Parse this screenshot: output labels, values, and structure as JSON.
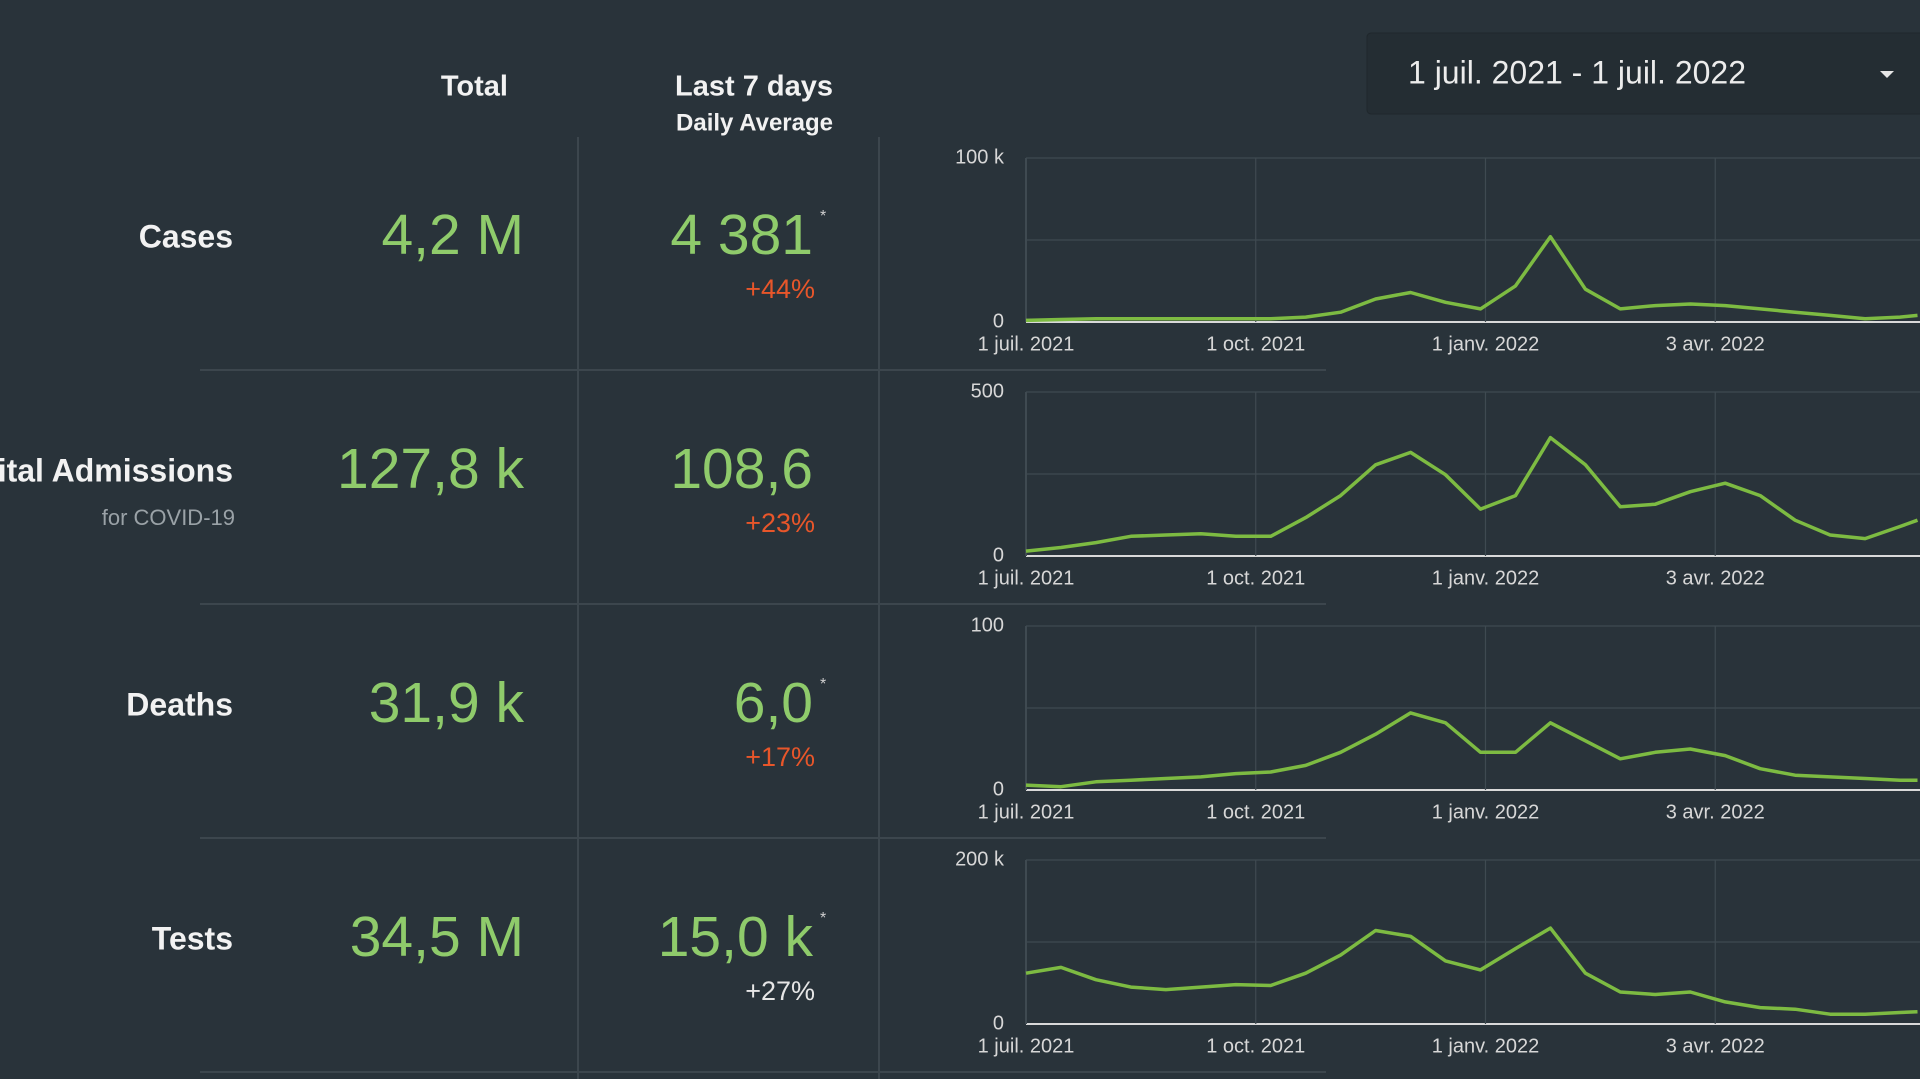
{
  "date_range": "1 juil. 2021 - 1 juil. 2022",
  "headers": {
    "total": "Total",
    "last7": "Last 7 days",
    "daily_avg": "Daily Average"
  },
  "rows": [
    {
      "label": "Cases",
      "total": "4,2 M",
      "avg": "4 381",
      "star": "*",
      "change": "+44%",
      "change_color": "#e8562a"
    },
    {
      "label": "Hospital Admissions",
      "note": "for COVID-19",
      "total": "127,8 k",
      "avg": "108,6",
      "change": "+23%",
      "change_color": "#e8562a"
    },
    {
      "label": "Deaths",
      "total": "31,9 k",
      "avg": "6,0",
      "star": "*",
      "change": "+17%",
      "change_color": "#e8562a"
    },
    {
      "label": "Tests",
      "total": "34,5 M",
      "avg": "15,0 k",
      "star": "*",
      "change": "+27%",
      "change_color": "#e6e6e6"
    }
  ],
  "chart_data": [
    {
      "type": "line",
      "color": "#7dbb42",
      "x": [
        "2021-07-01",
        "2021-07-15",
        "2021-07-29",
        "2021-08-12",
        "2021-08-26",
        "2021-09-09",
        "2021-09-23",
        "2021-10-07",
        "2021-10-21",
        "2021-11-04",
        "2021-11-18",
        "2021-12-02",
        "2021-12-16",
        "2021-12-30",
        "2022-01-13",
        "2022-01-27",
        "2022-02-10",
        "2022-02-24",
        "2022-03-10",
        "2022-03-24",
        "2022-04-07",
        "2022-04-21",
        "2022-05-05",
        "2022-05-19",
        "2022-06-02",
        "2022-06-16",
        "2022-06-23"
      ],
      "values": [
        1000,
        1500,
        2000,
        2000,
        2000,
        2000,
        2000,
        2000,
        3000,
        6000,
        14000,
        18000,
        12000,
        8000,
        22000,
        52000,
        20000,
        8000,
        10000,
        11000,
        10000,
        8000,
        6000,
        4000,
        2000,
        3000,
        4000
      ],
      "xlim": [
        "2021-07-01",
        "2022-06-24"
      ],
      "xticks": [
        {
          "value": "2021-07-01",
          "label": "1 juil. 2021"
        },
        {
          "value": "2021-10-01",
          "label": "1 oct. 2021"
        },
        {
          "value": "2022-01-01",
          "label": "1 janv. 2022"
        },
        {
          "value": "2022-04-03",
          "label": "3 avr. 2022"
        }
      ],
      "ylim": [
        0,
        100000
      ],
      "yticks": [
        0,
        {
          "value": 100000,
          "label": "100 k"
        }
      ],
      "ygrid": [
        0,
        50000,
        100000
      ]
    },
    {
      "type": "line",
      "color": "#7dbb42",
      "x": [
        "2021-07-01",
        "2021-07-15",
        "2021-07-29",
        "2021-08-12",
        "2021-08-26",
        "2021-09-09",
        "2021-09-23",
        "2021-10-07",
        "2021-10-21",
        "2021-11-04",
        "2021-11-18",
        "2021-12-02",
        "2021-12-16",
        "2021-12-30",
        "2022-01-13",
        "2022-01-27",
        "2022-02-10",
        "2022-02-24",
        "2022-03-10",
        "2022-03-24",
        "2022-04-07",
        "2022-04-21",
        "2022-05-05",
        "2022-05-19",
        "2022-06-02",
        "2022-06-16",
        "2022-06-23"
      ],
      "values": [
        15,
        26,
        41,
        60,
        64,
        68,
        60,
        60,
        117,
        184,
        278,
        316,
        248,
        143,
        184,
        361,
        278,
        150,
        158,
        196,
        222,
        184,
        109,
        64,
        53,
        90,
        109
      ],
      "xlim": [
        "2021-07-01",
        "2022-06-24"
      ],
      "xticks": [
        {
          "value": "2021-07-01",
          "label": "1 juil. 2021"
        },
        {
          "value": "2021-10-01",
          "label": "1 oct. 2021"
        },
        {
          "value": "2022-01-01",
          "label": "1 janv. 2022"
        },
        {
          "value": "2022-04-03",
          "label": "3 avr. 2022"
        }
      ],
      "ylim": [
        0,
        500
      ],
      "yticks": [
        0,
        500
      ],
      "ygrid": [
        0,
        250,
        500
      ]
    },
    {
      "type": "line",
      "color": "#7dbb42",
      "x": [
        "2021-07-01",
        "2021-07-15",
        "2021-07-29",
        "2021-08-12",
        "2021-08-26",
        "2021-09-09",
        "2021-09-23",
        "2021-10-07",
        "2021-10-21",
        "2021-11-04",
        "2021-11-18",
        "2021-12-02",
        "2021-12-16",
        "2021-12-30",
        "2022-01-13",
        "2022-01-27",
        "2022-02-10",
        "2022-02-24",
        "2022-03-10",
        "2022-03-24",
        "2022-04-07",
        "2022-04-21",
        "2022-05-05",
        "2022-05-19",
        "2022-06-02",
        "2022-06-16",
        "2022-06-23"
      ],
      "values": [
        3,
        2,
        5,
        6,
        7,
        8,
        10,
        11,
        15,
        23,
        34,
        47,
        41,
        23,
        23,
        41,
        30,
        19,
        23,
        25,
        21,
        13,
        9,
        8,
        7,
        6,
        6
      ],
      "xlim": [
        "2021-07-01",
        "2022-06-24"
      ],
      "xticks": [
        {
          "value": "2021-07-01",
          "label": "1 juil. 2021"
        },
        {
          "value": "2021-10-01",
          "label": "1 oct. 2021"
        },
        {
          "value": "2022-01-01",
          "label": "1 janv. 2022"
        },
        {
          "value": "2022-04-03",
          "label": "3 avr. 2022"
        }
      ],
      "ylim": [
        0,
        100
      ],
      "yticks": [
        0,
        100
      ],
      "ygrid": [
        0,
        50,
        100
      ]
    },
    {
      "type": "line",
      "color": "#7dbb42",
      "x": [
        "2021-07-01",
        "2021-07-15",
        "2021-07-29",
        "2021-08-12",
        "2021-08-26",
        "2021-09-09",
        "2021-09-23",
        "2021-10-07",
        "2021-10-21",
        "2021-11-04",
        "2021-11-18",
        "2021-12-02",
        "2021-12-16",
        "2021-12-30",
        "2022-01-13",
        "2022-01-27",
        "2022-02-10",
        "2022-02-24",
        "2022-03-10",
        "2022-03-24",
        "2022-04-07",
        "2022-04-21",
        "2022-05-05",
        "2022-05-19",
        "2022-06-02",
        "2022-06-16",
        "2022-06-23"
      ],
      "values": [
        62000,
        69000,
        54000,
        45000,
        42000,
        45000,
        48000,
        47000,
        62000,
        84000,
        114000,
        107000,
        77000,
        66000,
        92000,
        117000,
        62000,
        39000,
        36000,
        39000,
        27000,
        20000,
        18000,
        12000,
        12000,
        14000,
        15000
      ],
      "xlim": [
        "2021-07-01",
        "2022-06-24"
      ],
      "xticks": [
        {
          "value": "2021-07-01",
          "label": "1 juil. 2021"
        },
        {
          "value": "2021-10-01",
          "label": "1 oct. 2021"
        },
        {
          "value": "2022-01-01",
          "label": "1 janv. 2022"
        },
        {
          "value": "2022-04-03",
          "label": "3 avr. 2022"
        }
      ],
      "ylim": [
        0,
        200000
      ],
      "yticks": [
        0,
        {
          "value": 200000,
          "label": "200 k"
        }
      ],
      "ygrid": [
        0,
        100000,
        200000
      ]
    }
  ]
}
